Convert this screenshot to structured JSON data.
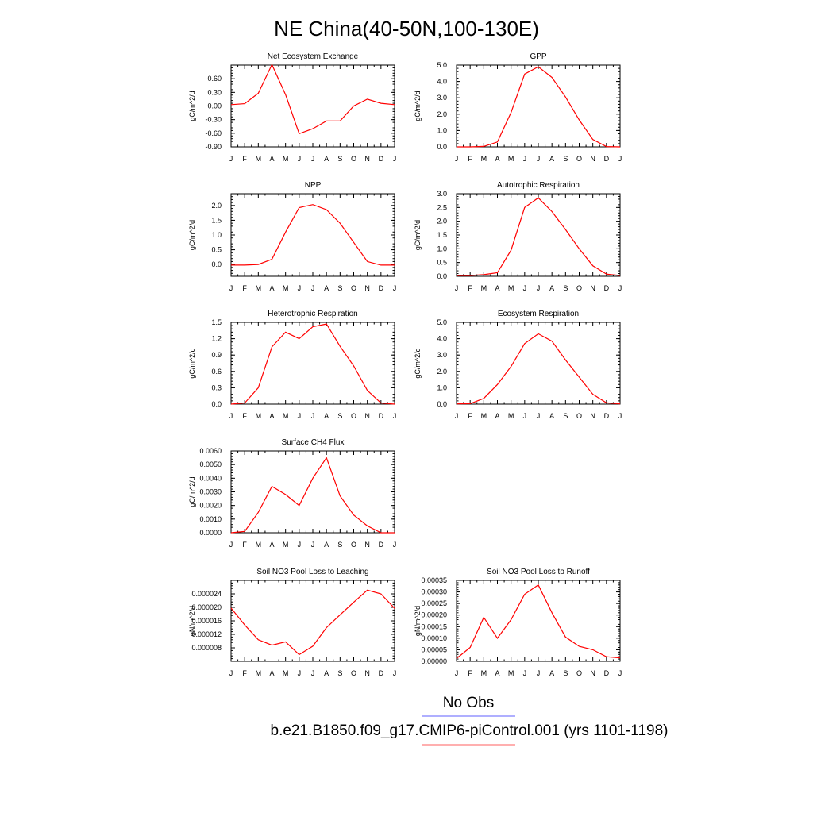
{
  "figure": {
    "title": "NE China(40-50N,100-130E)"
  },
  "legend": [
    {
      "label": "No Obs",
      "color": "#7f7fff"
    },
    {
      "label": "b.e21.B1850.f09_g17.CMIP6-piControl.001 (yrs 1101-1198)",
      "color": "#ff7f7f"
    }
  ],
  "colors": {
    "model": "#ff0000",
    "obs": "#7f7fff"
  },
  "chart_data": [
    {
      "type": "line",
      "title": "Net Ecosystem Exchange",
      "ylabel": "gC/m^2/d",
      "categories": [
        "J",
        "F",
        "M",
        "A",
        "M",
        "J",
        "J",
        "A",
        "S",
        "O",
        "N",
        "D",
        "J"
      ],
      "ylim": [
        -0.9,
        0.9
      ],
      "yticks": [
        -0.9,
        -0.6,
        -0.3,
        0.0,
        0.3,
        0.6
      ],
      "ytick_labels": [
        "-0.90",
        "-0.60",
        "-0.30",
        "0.00",
        "0.30",
        "0.60"
      ],
      "series": [
        {
          "values": [
            0.03,
            0.05,
            0.28,
            0.91,
            0.25,
            -0.61,
            -0.5,
            -0.33,
            -0.33,
            0.0,
            0.15,
            0.06,
            0.03
          ]
        }
      ]
    },
    {
      "type": "line",
      "title": "GPP",
      "ylabel": "gC/m^2/d",
      "categories": [
        "J",
        "F",
        "M",
        "A",
        "M",
        "J",
        "J",
        "A",
        "S",
        "O",
        "N",
        "D",
        "J"
      ],
      "ylim": [
        0,
        5
      ],
      "yticks": [
        0,
        1,
        2,
        3,
        4,
        5
      ],
      "ytick_labels": [
        "0.0",
        "1.0",
        "2.0",
        "3.0",
        "4.0",
        "5.0"
      ],
      "series": [
        {
          "values": [
            0.0,
            0.0,
            0.03,
            0.3,
            2.1,
            4.45,
            4.9,
            4.25,
            3.05,
            1.65,
            0.45,
            0.02,
            0.0
          ]
        }
      ]
    },
    {
      "type": "line",
      "title": "NPP",
      "ylabel": "gC/m^2/d",
      "categories": [
        "J",
        "F",
        "M",
        "A",
        "M",
        "J",
        "J",
        "A",
        "S",
        "O",
        "N",
        "D",
        "J"
      ],
      "ylim": [
        -0.4,
        2.4
      ],
      "yticks": [
        0.0,
        0.5,
        1.0,
        1.5,
        2.0
      ],
      "ytick_labels": [
        "0.0",
        "0.5",
        "1.0",
        "1.5",
        "2.0"
      ],
      "series": [
        {
          "values": [
            -0.02,
            -0.02,
            0.0,
            0.18,
            1.1,
            1.93,
            2.03,
            1.86,
            1.4,
            0.75,
            0.1,
            -0.02,
            -0.02
          ]
        }
      ]
    },
    {
      "type": "line",
      "title": "Autotrophic Respiration",
      "ylabel": "gC/m^2/d",
      "categories": [
        "J",
        "F",
        "M",
        "A",
        "M",
        "J",
        "J",
        "A",
        "S",
        "O",
        "N",
        "D",
        "J"
      ],
      "ylim": [
        0,
        3
      ],
      "yticks": [
        0,
        0.5,
        1.0,
        1.5,
        2.0,
        2.5,
        3.0
      ],
      "ytick_labels": [
        "0.0",
        "0.5",
        "1.0",
        "1.5",
        "2.0",
        "2.5",
        "3.0"
      ],
      "series": [
        {
          "values": [
            0.03,
            0.03,
            0.06,
            0.13,
            0.95,
            2.5,
            2.85,
            2.35,
            1.7,
            1.0,
            0.38,
            0.08,
            0.03
          ]
        }
      ]
    },
    {
      "type": "line",
      "title": "Heterotrophic Respiration",
      "ylabel": "gC/m^2/d",
      "categories": [
        "J",
        "F",
        "M",
        "A",
        "M",
        "J",
        "J",
        "A",
        "S",
        "O",
        "N",
        "D",
        "J"
      ],
      "ylim": [
        0,
        1.5
      ],
      "yticks": [
        0,
        0.3,
        0.6,
        0.9,
        1.2,
        1.5
      ],
      "ytick_labels": [
        "0.0",
        "0.3",
        "0.6",
        "0.9",
        "1.2",
        "1.5"
      ],
      "series": [
        {
          "values": [
            0.0,
            0.02,
            0.3,
            1.05,
            1.32,
            1.2,
            1.42,
            1.47,
            1.06,
            0.7,
            0.25,
            0.02,
            0.0
          ]
        }
      ]
    },
    {
      "type": "line",
      "title": "Ecosystem Respiration",
      "ylabel": "gC/m^2/d",
      "categories": [
        "J",
        "F",
        "M",
        "A",
        "M",
        "J",
        "J",
        "A",
        "S",
        "O",
        "N",
        "D",
        "J"
      ],
      "ylim": [
        0,
        5
      ],
      "yticks": [
        0,
        1,
        2,
        3,
        4,
        5
      ],
      "ytick_labels": [
        "0.0",
        "1.0",
        "2.0",
        "3.0",
        "4.0",
        "5.0"
      ],
      "series": [
        {
          "values": [
            0.02,
            0.03,
            0.35,
            1.2,
            2.3,
            3.7,
            4.3,
            3.85,
            2.7,
            1.65,
            0.6,
            0.08,
            0.02
          ]
        }
      ]
    },
    {
      "type": "line",
      "title": "Surface CH4 Flux",
      "ylabel": "gC/m^2/d",
      "categories": [
        "J",
        "F",
        "M",
        "A",
        "M",
        "J",
        "J",
        "A",
        "S",
        "O",
        "N",
        "D",
        "J"
      ],
      "ylim": [
        0,
        0.006
      ],
      "yticks": [
        0,
        0.001,
        0.002,
        0.003,
        0.004,
        0.005,
        0.006
      ],
      "ytick_labels": [
        "0.0000",
        "0.0010",
        "0.0020",
        "0.0030",
        "0.0040",
        "0.0050",
        "0.0060"
      ],
      "series": [
        {
          "values": [
            0.0,
            0.0001,
            0.0015,
            0.0034,
            0.0028,
            0.002,
            0.004,
            0.0055,
            0.0027,
            0.0013,
            0.0005,
            0.0,
            0.0
          ]
        }
      ]
    },
    {
      "type": "line",
      "title": "Soil NO3 Pool Loss to Leaching",
      "ylabel": "gN/m^2/d",
      "categories": [
        "J",
        "F",
        "M",
        "A",
        "M",
        "J",
        "J",
        "A",
        "S",
        "O",
        "N",
        "D",
        "J"
      ],
      "ylim": [
        4e-06,
        2.8e-05
      ],
      "yticks": [
        8e-06,
        1.2e-05,
        1.6e-05,
        2e-05,
        2.4e-05
      ],
      "ytick_labels": [
        "0.000008",
        "0.000012",
        "0.000016",
        "0.000020",
        "0.000024"
      ],
      "series": [
        {
          "values": [
            1.98e-05,
            1.48e-05,
            1.04e-05,
            8.8e-06,
            9.8e-06,
            6e-06,
            8.5e-06,
            1.4e-05,
            1.78e-05,
            2.15e-05,
            2.51e-05,
            2.4e-05,
            1.97e-05
          ]
        }
      ]
    },
    {
      "type": "line",
      "title": "Soil NO3 Pool Loss to Runoff",
      "ylabel": "gN/m^2/d",
      "categories": [
        "J",
        "F",
        "M",
        "A",
        "M",
        "J",
        "J",
        "A",
        "S",
        "O",
        "N",
        "D",
        "J"
      ],
      "ylim": [
        0,
        0.00035
      ],
      "yticks": [
        0,
        5e-05,
        0.0001,
        0.00015,
        0.0002,
        0.00025,
        0.0003,
        0.00035
      ],
      "ytick_labels": [
        "0.00000",
        "0.00005",
        "0.00010",
        "0.00015",
        "0.00020",
        "0.00025",
        "0.00030",
        "0.00035"
      ],
      "series": [
        {
          "values": [
            1.2e-05,
            6e-05,
            0.00019,
            0.0001,
            0.00018,
            0.00029,
            0.00033,
            0.00021,
            0.000105,
            6.5e-05,
            5e-05,
            2e-05,
            1.5e-05
          ]
        }
      ]
    }
  ]
}
